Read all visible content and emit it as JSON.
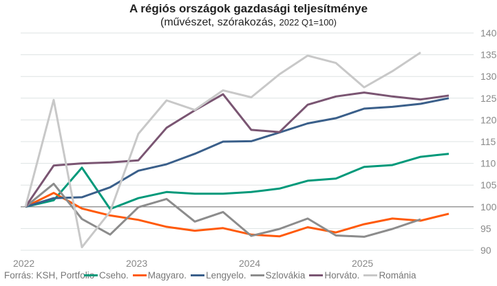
{
  "chart_data": {
    "type": "line",
    "title": "A régiós országok gazdasági teljesítménye",
    "subtitle_main": "(művészet, szórakozás, ",
    "subtitle_small": "2022 Q1=100)",
    "xlabel": "",
    "ylabel": "",
    "ylim": [
      90,
      140
    ],
    "yticks": [
      90,
      95,
      100,
      105,
      110,
      115,
      120,
      125,
      130,
      135,
      140
    ],
    "xticks": [
      {
        "label": "2022",
        "index": 0
      },
      {
        "label": "2023",
        "index": 4
      },
      {
        "label": "2024",
        "index": 8
      },
      {
        "label": "2025",
        "index": 12
      }
    ],
    "x": [
      "2022Q1",
      "2022Q2",
      "2022Q3",
      "2022Q4",
      "2023Q1",
      "2023Q2",
      "2023Q3",
      "2023Q4",
      "2024Q1",
      "2024Q2",
      "2024Q3",
      "2024Q4",
      "2025Q1",
      "2025Q2",
      "2025Q3",
      "2025Q4"
    ],
    "baseline": 100,
    "grid": true,
    "legend_position": "bottom",
    "series": [
      {
        "name": "Cseho.",
        "color": "#00997a",
        "values": [
          100,
          101.5,
          109,
          99.5,
          102,
          103.4,
          103,
          103,
          103.4,
          104.2,
          106,
          106.5,
          109.2,
          109.6,
          111.5,
          112.2
        ]
      },
      {
        "name": "Magyaro.",
        "color": "#ff5a0a",
        "values": [
          100,
          103.2,
          99.6,
          98,
          97,
          95.4,
          94.5,
          95.1,
          93.6,
          93.2,
          95.3,
          94.1,
          96,
          97.3,
          96.8,
          98.4
        ]
      },
      {
        "name": "Lengyelo.",
        "color": "#3a5f8a",
        "values": [
          100,
          102,
          102.2,
          104.5,
          108.3,
          109.8,
          112.2,
          115,
          115.1,
          117.1,
          119.2,
          120.4,
          122.6,
          123,
          123.7,
          125
        ]
      },
      {
        "name": "Szlovákia",
        "color": "#8c8c8c",
        "values": [
          100,
          105.3,
          97.2,
          93.6,
          99.9,
          101.8,
          96.6,
          98.8,
          93.3,
          94.9,
          97.3,
          93.4,
          93.1,
          94.9,
          97.1
        ]
      },
      {
        "name": "Horváto.",
        "color": "#7a5572",
        "values": [
          100,
          109.5,
          110,
          110.2,
          110.7,
          118.2,
          122.2,
          125.9,
          117.7,
          117.2,
          123.5,
          125.4,
          126.3,
          125.4,
          124.7,
          125.6
        ]
      },
      {
        "name": "Románia",
        "color": "#c8c8c8",
        "values": [
          100,
          124.6,
          90.7,
          98.9,
          116.8,
          124.5,
          122.3,
          126.8,
          125.2,
          130.5,
          134.8,
          133.1,
          127.5,
          131.2,
          135.5
        ]
      }
    ]
  },
  "footer": {
    "source": "Forrás: KSH, Portfolio"
  }
}
